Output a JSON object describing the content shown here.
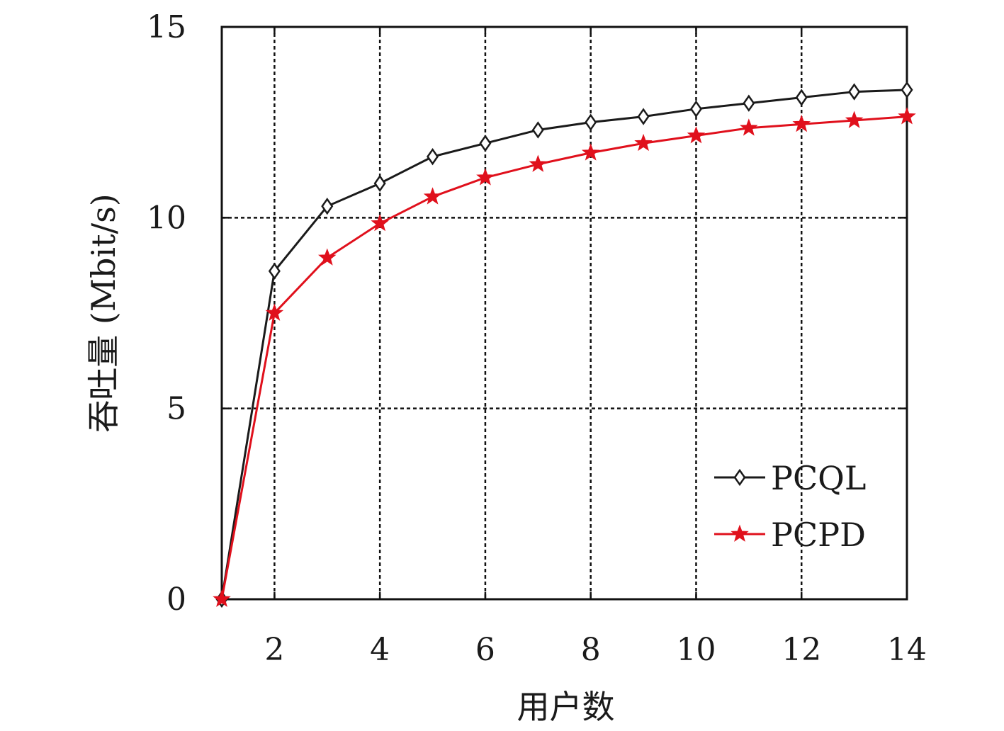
{
  "chart_data": {
    "type": "line",
    "xlabel": "用户数",
    "ylabel": "吞吐量 (Mbit/s)",
    "xlim": [
      1,
      14
    ],
    "ylim": [
      0,
      15
    ],
    "x_ticks": [
      2,
      4,
      6,
      8,
      10,
      12,
      14
    ],
    "y_ticks": [
      0,
      5,
      10,
      15
    ],
    "grid": true,
    "legend_position": "bottom-right",
    "x": [
      1,
      2,
      3,
      4,
      5,
      6,
      7,
      8,
      9,
      10,
      11,
      12,
      13,
      14
    ],
    "series": [
      {
        "name": "PCQL",
        "color": "#1a1a1a",
        "marker": "diamond",
        "values": [
          0.0,
          8.6,
          10.3,
          10.9,
          11.6,
          11.95,
          12.3,
          12.5,
          12.65,
          12.85,
          13.0,
          13.15,
          13.3,
          13.35
        ]
      },
      {
        "name": "PCPD",
        "color": "#e0101c",
        "marker": "star",
        "values": [
          0.0,
          7.5,
          8.95,
          9.85,
          10.55,
          11.05,
          11.4,
          11.7,
          11.95,
          12.15,
          12.35,
          12.45,
          12.55,
          12.65
        ]
      }
    ]
  }
}
